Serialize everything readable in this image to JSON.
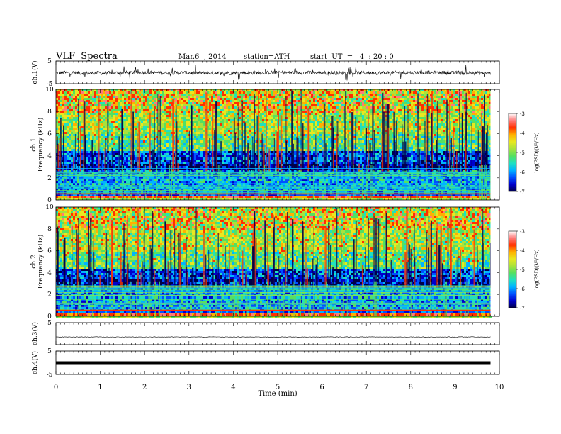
{
  "header": {
    "title": "VLF  Spectra",
    "date": "Mar.6  , 2014",
    "station": "station=ATH",
    "start": "start  UT  =   4  : 20 : 0"
  },
  "chart_data": [
    {
      "type": "line",
      "name": "ch1-waveform",
      "ylabel": "ch.1(V)",
      "ylim": [
        -5,
        5
      ],
      "yticks": [
        "5",
        "-5"
      ],
      "x": [
        0,
        1,
        2,
        3,
        4,
        5,
        6,
        7,
        8,
        9,
        9.8
      ],
      "values": [
        -0.2,
        -0.3,
        -0.1,
        -0.2,
        -0.3,
        -0.1,
        -0.2,
        -0.3,
        -0.1,
        -0.2,
        -0.4
      ]
    },
    {
      "type": "heatmap",
      "name": "ch1-spectrogram",
      "ylabel": "ch.1\nFrequency  (kHz)",
      "ylim": [
        0,
        10
      ],
      "yticks": [
        "0",
        "2",
        "4",
        "6",
        "8",
        "10"
      ],
      "xlim": [
        0,
        10
      ],
      "data_end_min": 9.8,
      "colorbar": {
        "label": "log(PSD)(V²/Hz)",
        "range": [
          -7,
          -3
        ],
        "ticks": [
          "-3",
          "-4",
          "-5",
          "-6",
          "-7"
        ]
      }
    },
    {
      "type": "heatmap",
      "name": "ch2-spectrogram",
      "ylabel": "ch.2\nFrequency  (kHz)",
      "ylim": [
        0,
        10
      ],
      "yticks": [
        "0",
        "2",
        "4",
        "6",
        "8",
        "10"
      ],
      "xlim": [
        0,
        10
      ],
      "data_end_min": 9.8,
      "colorbar": {
        "label": "log(PSD)(V²/Hz)",
        "range": [
          -7,
          -3
        ],
        "ticks": [
          "-3",
          "-4",
          "-5",
          "-6",
          "-7"
        ]
      }
    },
    {
      "type": "line",
      "name": "ch3-waveform",
      "ylabel": "ch.3(V)",
      "ylim": [
        -5,
        5
      ],
      "yticks": [
        "5"
      ],
      "x": [
        0,
        9.8
      ],
      "values": [
        -1.5,
        -1.5
      ]
    },
    {
      "type": "line",
      "name": "ch4-waveform",
      "ylabel": "ch.4(V)",
      "ylim": [
        -5,
        5
      ],
      "yticks": [
        "5",
        "-5"
      ],
      "x": [
        0,
        9.8
      ],
      "values": [
        0,
        0
      ]
    }
  ],
  "x_axis": {
    "label": "Time  (min)",
    "ticks": [
      "0",
      "1",
      "2",
      "3",
      "4",
      "5",
      "6",
      "7",
      "8",
      "9",
      "10"
    ],
    "range": [
      0,
      10
    ]
  },
  "palette": {
    "colormap": [
      "#00004a",
      "#0000cc",
      "#0050ff",
      "#00b4ff",
      "#1fe0c0",
      "#55e060",
      "#a8e23c",
      "#e8e820",
      "#ffb000",
      "#ff3000",
      "#ff7a7a",
      "#ffffff"
    ],
    "trace": "#000000",
    "frame": "#000000"
  }
}
